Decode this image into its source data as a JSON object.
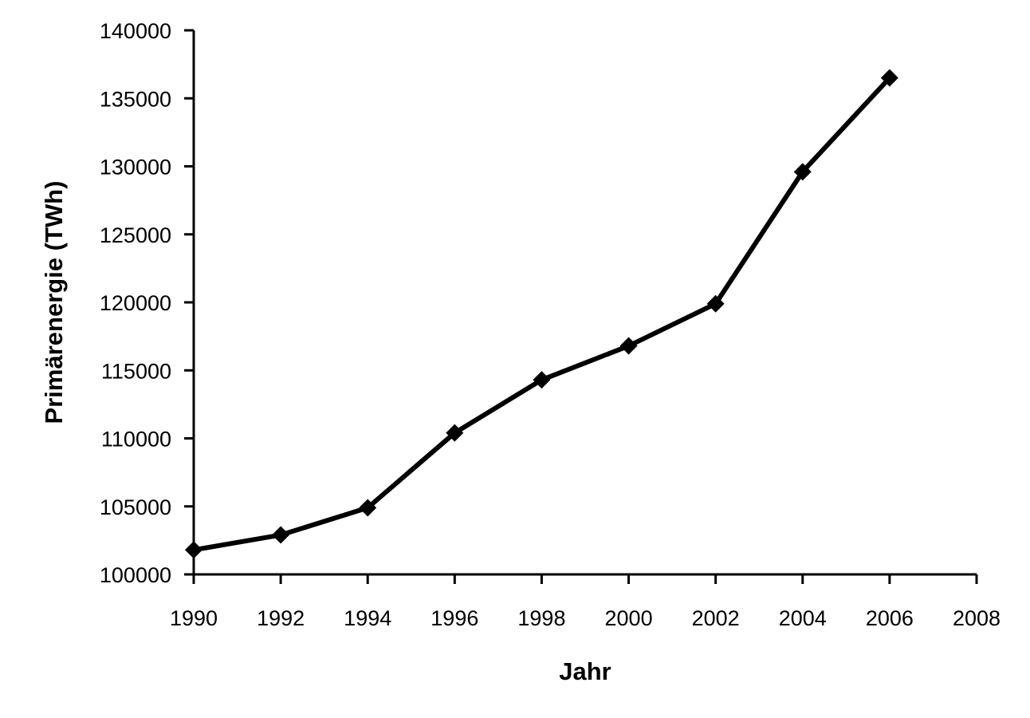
{
  "chart_data": {
    "type": "line",
    "xlabel": "Jahr",
    "ylabel": "Primärenergie (TWh)",
    "xlim": [
      1990,
      2008
    ],
    "ylim": [
      100000,
      140000
    ],
    "x_ticks": [
      1990,
      1992,
      1994,
      1996,
      1998,
      2000,
      2002,
      2004,
      2006,
      2008
    ],
    "y_ticks": [
      100000,
      105000,
      110000,
      115000,
      120000,
      125000,
      130000,
      135000,
      140000
    ],
    "grid": false,
    "series": [
      {
        "marker": "diamond",
        "color": "#000000",
        "x": [
          1990,
          1992,
          1994,
          1996,
          1998,
          2000,
          2002,
          2004,
          2006
        ],
        "y": [
          101800,
          102900,
          104900,
          110400,
          114300,
          116800,
          119900,
          129600,
          136500
        ]
      }
    ]
  }
}
